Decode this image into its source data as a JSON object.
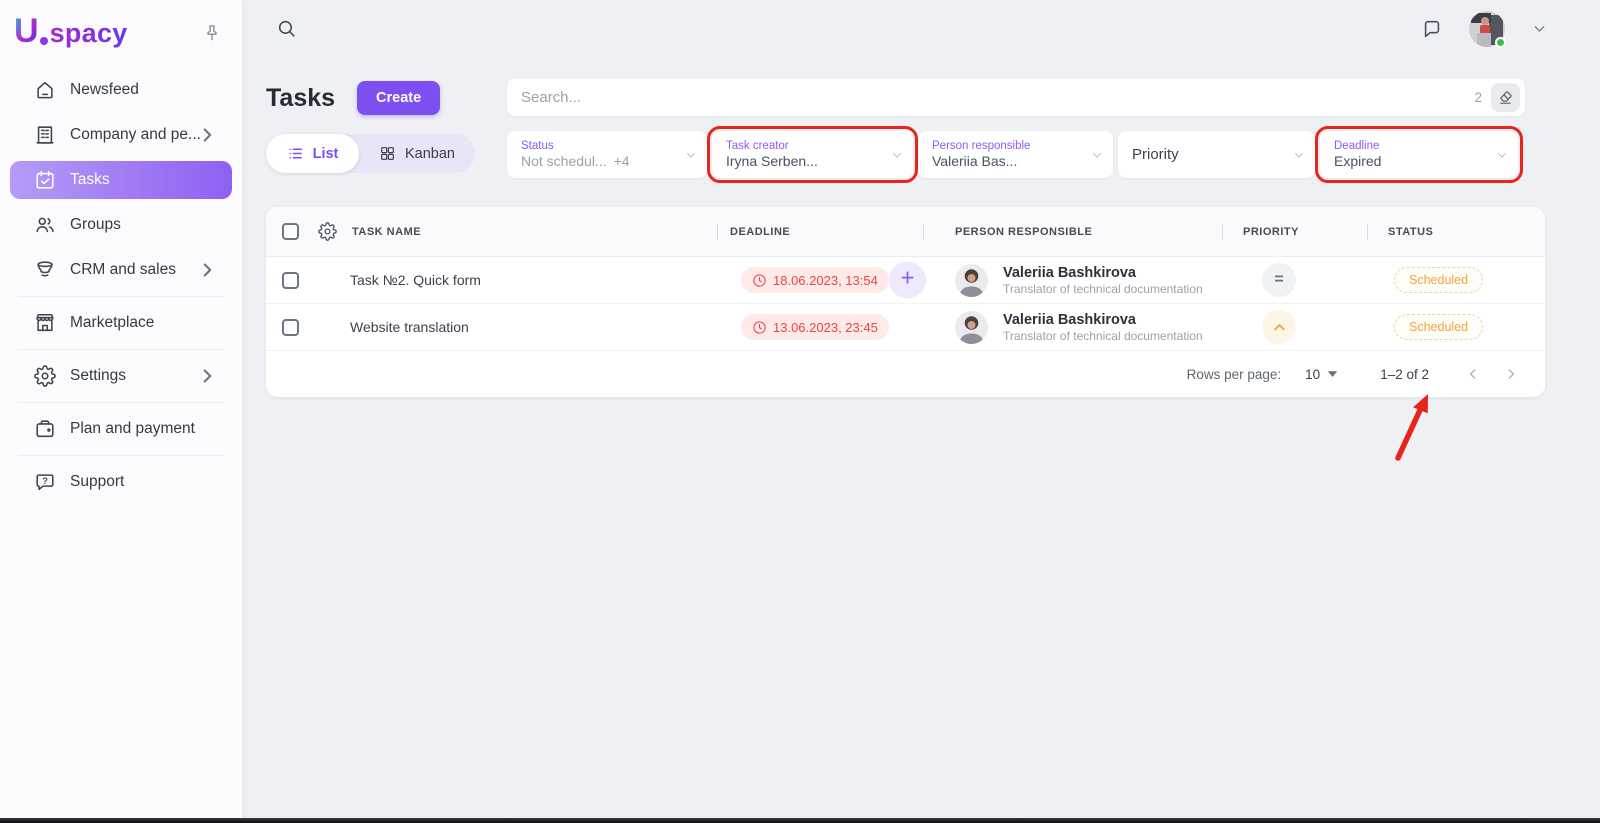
{
  "brand": {
    "logo_initial": "U",
    "logo_text": "spacy"
  },
  "sidebar": {
    "items": [
      {
        "id": "newsfeed",
        "icon": "home",
        "label": "Newsfeed"
      },
      {
        "id": "company",
        "icon": "building",
        "label": "Company and pe...",
        "chevron": true
      },
      {
        "id": "tasks",
        "icon": "calendar",
        "label": "Tasks",
        "active": true
      },
      {
        "id": "groups",
        "icon": "people",
        "label": "Groups"
      },
      {
        "id": "crm",
        "icon": "funnel",
        "label": "CRM and sales",
        "chevron": true,
        "divider_after": true
      },
      {
        "id": "marketplace",
        "icon": "store",
        "label": "Marketplace",
        "divider_after": true
      },
      {
        "id": "settings",
        "icon": "gear",
        "label": "Settings",
        "chevron": true,
        "divider_after": true
      },
      {
        "id": "plan",
        "icon": "wallet",
        "label": "Plan and payment",
        "divider_after": true
      },
      {
        "id": "support",
        "icon": "support",
        "label": "Support"
      }
    ]
  },
  "page": {
    "title": "Tasks",
    "create_button": "Create"
  },
  "search": {
    "placeholder": "Search...",
    "active_filter_count": "2"
  },
  "view_toggle": {
    "list": "List",
    "kanban": "Kanban"
  },
  "filters": [
    {
      "id": "status",
      "label": "Status",
      "value": "Not schedul...",
      "extra": "+4",
      "muted": true
    },
    {
      "id": "task-creator",
      "label": "Task creator",
      "value": "Iryna Serben...",
      "annotated": true
    },
    {
      "id": "person-responsible",
      "label": "Person responsible",
      "value": "Valeriia Bas..."
    },
    {
      "id": "priority",
      "label": "",
      "value": "Priority",
      "plain": true
    },
    {
      "id": "deadline",
      "label": "Deadline",
      "value": "Expired",
      "annotated": true
    }
  ],
  "table": {
    "headers": {
      "task_name": "TASK NAME",
      "deadline": "DEADLINE",
      "person": "PERSON RESPONSIBLE",
      "priority": "PRIORITY",
      "status": "STATUS"
    },
    "rows": [
      {
        "name": "Task №2. Quick form",
        "deadline": "18.06.2023, 13:54",
        "add_button": true,
        "person_name": "Valeriia Bashkirova",
        "person_title": "Translator of technical documentation",
        "priority": "medium",
        "status": "Scheduled"
      },
      {
        "name": "Website translation",
        "deadline": "13.06.2023, 23:45",
        "add_button": false,
        "person_name": "Valeriia Bashkirova",
        "person_title": "Translator of technical documentation",
        "priority": "high",
        "status": "Scheduled"
      }
    ],
    "pagination": {
      "label": "Rows per page:",
      "value": "10",
      "range": "1–2 of 2"
    }
  },
  "annotations": {
    "boxed_filters": [
      "task-creator",
      "deadline"
    ],
    "arrow_points_to": "pagination-range"
  },
  "colors": {
    "accent": "#7c4ff0",
    "annotation": "#e8251d",
    "deadline_text": "#ef4444",
    "status_text": "#f0a43c",
    "priority_high": "#f0a43c",
    "online": "#35c04e"
  }
}
